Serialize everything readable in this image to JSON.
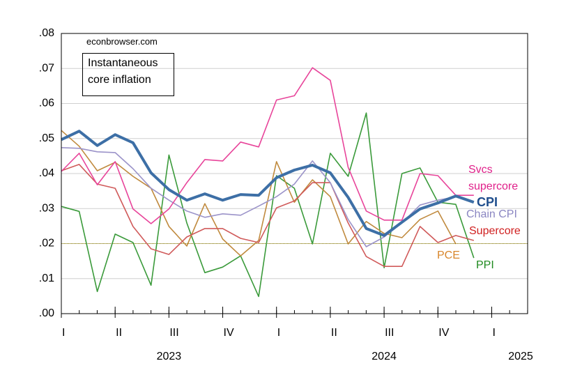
{
  "chart_data": {
    "type": "line",
    "source": "econbrowser.com",
    "title": "Instantaneous core inflation",
    "x": [
      2023,
      2023.083,
      2023.167,
      2023.25,
      2023.333,
      2023.417,
      2023.5,
      2023.583,
      2023.667,
      2023.75,
      2023.833,
      2023.917,
      2024,
      2024.083,
      2024.167,
      2024.25,
      2024.333,
      2024.417,
      2024.5,
      2024.583,
      2024.667,
      2024.75,
      2024.833,
      2024.917
    ],
    "xlim": [
      2023,
      2025.167
    ],
    "xticks": [
      {
        "value": 2023,
        "label": "I"
      },
      {
        "value": 2023.25,
        "label": "II"
      },
      {
        "value": 2023.5,
        "label": "III"
      },
      {
        "value": 2023.75,
        "label": "IV"
      },
      {
        "value": 2024,
        "label": "I"
      },
      {
        "value": 2024.25,
        "label": "II"
      },
      {
        "value": 2024.5,
        "label": "III"
      },
      {
        "value": 2024.75,
        "label": "IV"
      },
      {
        "value": 2025,
        "label": "I"
      }
    ],
    "year_labels": [
      {
        "value": 2023.5,
        "label": "2023"
      },
      {
        "value": 2024.5,
        "label": "2024"
      },
      {
        "value": 2025.5,
        "label": "2025"
      }
    ],
    "ylim": [
      0,
      0.08
    ],
    "yticks": [
      {
        "value": 0,
        "label": ".00"
      },
      {
        "value": 0.01,
        "label": ".01"
      },
      {
        "value": 0.02,
        "label": ".02"
      },
      {
        "value": 0.03,
        "label": ".03"
      },
      {
        "value": 0.04,
        "label": ".04"
      },
      {
        "value": 0.05,
        "label": ".05"
      },
      {
        "value": 0.06,
        "label": ".06"
      },
      {
        "value": 0.07,
        "label": ".07"
      },
      {
        "value": 0.08,
        "label": ".08"
      }
    ],
    "grid": true,
    "reference_line": 0.02,
    "series": [
      {
        "name": "PPI",
        "color": "#3a9a3a",
        "label_color": "#1f8a1f",
        "values": [
          0.0306,
          0.0292,
          0.0063,
          0.0227,
          0.0203,
          0.0081,
          0.0453,
          0.0259,
          0.0117,
          0.0133,
          0.0165,
          0.0049,
          0.0394,
          0.0358,
          0.0199,
          0.0458,
          0.0392,
          0.0573,
          0.0131,
          0.04,
          0.0416,
          0.0318,
          0.0312,
          0.0159
        ]
      },
      {
        "name": "PCE",
        "color": "#c08a3e",
        "label_color": "#d8852a",
        "values": [
          0.0523,
          0.0478,
          0.0408,
          0.0432,
          0.0392,
          0.0358,
          0.0249,
          0.0193,
          0.0314,
          0.0213,
          0.0165,
          0.0209,
          0.0434,
          0.0318,
          0.0382,
          0.0334,
          0.0199,
          0.0263,
          0.0229,
          0.0217,
          0.0269,
          0.0293,
          0.0199,
          null
        ]
      },
      {
        "name": "Supercore",
        "color": "#d05a5a",
        "label_color": "#d02020",
        "values": [
          0.0408,
          0.0426,
          0.037,
          0.0358,
          0.0249,
          0.0185,
          0.0169,
          0.0219,
          0.0243,
          0.0243,
          0.0215,
          0.0203,
          0.0302,
          0.0322,
          0.0374,
          0.0374,
          0.0259,
          0.0163,
          0.0135,
          0.0135,
          0.0249,
          0.0203,
          0.0223,
          0.0209
        ]
      },
      {
        "name": "Chain CPI",
        "color": "#9b93c9",
        "label_color": "#8a86c2",
        "values": [
          0.0474,
          0.0472,
          0.0462,
          0.046,
          0.0414,
          0.0358,
          0.0324,
          0.0293,
          0.0275,
          0.0285,
          0.0281,
          0.0307,
          0.0334,
          0.037,
          0.0436,
          0.0374,
          0.0269,
          0.0191,
          0.0219,
          0.0259,
          0.031,
          0.0324,
          0.0334,
          null
        ]
      },
      {
        "name": "Svcs supercore",
        "color": "#e8449a",
        "label_color": "#e0208a",
        "values": [
          0.0406,
          0.0458,
          0.0368,
          0.0434,
          0.0299,
          0.0257,
          0.0299,
          0.0374,
          0.044,
          0.0436,
          0.049,
          0.0476,
          0.061,
          0.0622,
          0.0702,
          0.0666,
          0.0418,
          0.0293,
          0.0267,
          0.0267,
          0.04,
          0.0394,
          0.0338,
          0.0338
        ]
      },
      {
        "name": "CPI",
        "color": "#3d6fa6",
        "label_color": "#1e4d8c",
        "width": 4,
        "bold": true,
        "values": [
          0.0497,
          0.0521,
          0.048,
          0.0511,
          0.0488,
          0.0402,
          0.0354,
          0.0324,
          0.0342,
          0.0324,
          0.034,
          0.0338,
          0.0388,
          0.041,
          0.0424,
          0.0402,
          0.0332,
          0.0243,
          0.0223,
          0.0261,
          0.0299,
          0.0316,
          0.0336,
          0.0318
        ]
      }
    ]
  }
}
